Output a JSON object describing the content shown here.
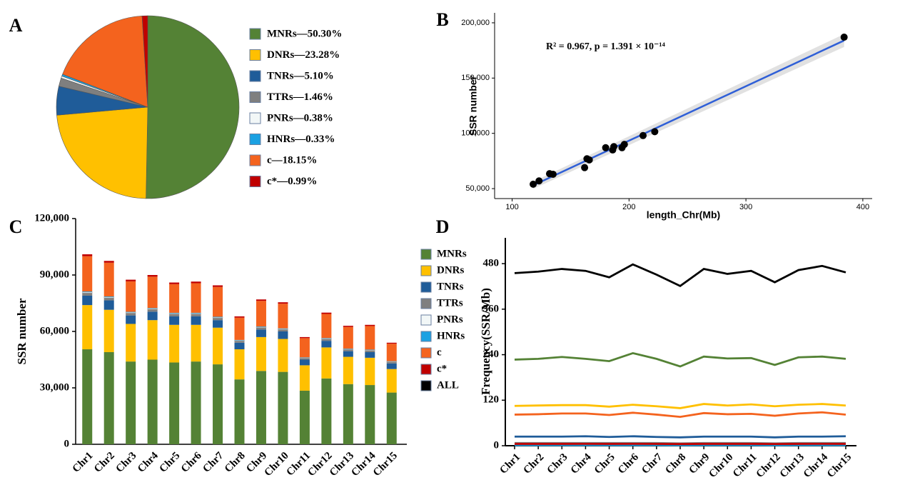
{
  "chart_data": [
    {
      "type": "pie",
      "panel_label": "A",
      "categories": [
        "MNRs—50.30%",
        "DNRs—23.28%",
        "TNRs—5.10%",
        "TTRs—1.46%",
        "PNRs—0.38%",
        "HNRs—0.33%",
        "c—18.15%",
        "c*—0.99%"
      ],
      "values": [
        50.3,
        23.28,
        5.1,
        1.46,
        0.38,
        0.33,
        18.15,
        0.99
      ],
      "colors": [
        "#548235",
        "#ffc000",
        "#1f5c99",
        "#7f7f7f",
        "#f2f7f7",
        "#1ba1e2",
        "#f4631e",
        "#c00000"
      ]
    },
    {
      "type": "scatter",
      "panel_label": "B",
      "x_label": "length_Chr(Mb)",
      "y_label": "SSR number",
      "annotation": "R² = 0.967, p = 1.391 × 10⁻¹⁴",
      "x": [
        118,
        123,
        132,
        135,
        162,
        164,
        166,
        180,
        186,
        187,
        194,
        196,
        212,
        222,
        384
      ],
      "values": [
        54000,
        57000,
        63500,
        63000,
        69000,
        77000,
        76000,
        87000,
        85000,
        88000,
        87000,
        90000,
        98000,
        101500,
        187000
      ],
      "color": "#000000",
      "fit": {
        "x": [
          118,
          384
        ],
        "y": [
          53000,
          184000
        ],
        "color": "#2f5fd7"
      },
      "xlim": [
        85,
        408
      ],
      "xticks": [
        100,
        200,
        300,
        400
      ],
      "ylim": [
        41000,
        209000
      ],
      "yticks": [
        {
          "value": 50000,
          "label": "50,000"
        },
        {
          "value": 100000,
          "label": "100,000"
        },
        {
          "value": 150000,
          "label": "150,000"
        },
        {
          "value": 200000,
          "label": "200,000"
        }
      ]
    },
    {
      "type": "bar",
      "stacked": true,
      "panel_label": "C",
      "y_label": "SSR number",
      "categories": [
        "Chr1",
        "Chr2",
        "Chr3",
        "Chr4",
        "Chr5",
        "Chr6",
        "Chr7",
        "Chr8",
        "Chr9",
        "Chr10",
        "Chr11",
        "Chr12",
        "Chr13",
        "Chr14",
        "Chr15"
      ],
      "series": [
        {
          "name": "MNRs",
          "color": "#548235",
          "values": [
            50500,
            49000,
            44000,
            45000,
            43500,
            44000,
            42500,
            34500,
            39000,
            38500,
            28500,
            35000,
            32000,
            31500,
            27500
          ]
        },
        {
          "name": "DNRs",
          "color": "#ffc000",
          "values": [
            23500,
            22500,
            20000,
            21000,
            20000,
            19500,
            19500,
            16000,
            18000,
            17500,
            13500,
            16500,
            14500,
            14500,
            12500
          ]
        },
        {
          "name": "TNRs",
          "color": "#1f5c99",
          "values": [
            5000,
            5000,
            4500,
            4500,
            4500,
            4500,
            4000,
            3500,
            4000,
            4000,
            3000,
            3500,
            3000,
            3000,
            3000
          ]
        },
        {
          "name": "TTRs",
          "color": "#7f7f7f",
          "values": [
            1500,
            1400,
            1300,
            1300,
            1300,
            1300,
            1200,
            1000,
            1100,
            1100,
            800,
            1000,
            900,
            900,
            800
          ]
        },
        {
          "name": "PNRs",
          "color": "#f2f7f7",
          "values": [
            400,
            370,
            330,
            340,
            330,
            330,
            320,
            260,
            290,
            290,
            220,
            270,
            240,
            240,
            210
          ]
        },
        {
          "name": "HNRs",
          "color": "#1ba1e2",
          "values": [
            330,
            320,
            290,
            300,
            280,
            290,
            280,
            220,
            250,
            250,
            190,
            230,
            210,
            210,
            180
          ]
        },
        {
          "name": "c",
          "color": "#f4631e",
          "values": [
            18770,
            17940,
            16210,
            16660,
            15230,
            15720,
            15860,
            11840,
            13600,
            13110,
            10230,
            12800,
            11530,
            12520,
            9270
          ]
        },
        {
          "name": "c*",
          "color": "#c00000",
          "values": [
            1000,
            970,
            870,
            900,
            860,
            860,
            840,
            680,
            760,
            750,
            560,
            700,
            620,
            630,
            540
          ]
        }
      ],
      "ylim": [
        0,
        120000
      ],
      "yticks": [
        0,
        {
          "value": 30000,
          "label": "30,000"
        },
        {
          "value": 60000,
          "label": "60,000"
        },
        {
          "value": 90000,
          "label": "90,000"
        },
        {
          "value": 120000,
          "label": "120,000"
        }
      ]
    },
    {
      "type": "line",
      "panel_label": "D",
      "y_label": "Frequency(SSR/Mb)",
      "categories": [
        "Chr1",
        "Chr2",
        "Chr3",
        "Chr4",
        "Chr5",
        "Chr6",
        "Chr7",
        "Chr8",
        "Chr9",
        "Chr10",
        "Chr11",
        "Chr12",
        "Chr13",
        "Chr14",
        "Chr15"
      ],
      "series": [
        {
          "name": "MNRs",
          "color": "#548235",
          "values": [
            227,
            229,
            234,
            229,
            223,
            244,
            229,
            209,
            235,
            230,
            231,
            213,
            233,
            235,
            229
          ]
        },
        {
          "name": "DNRs",
          "color": "#ffc000",
          "values": [
            105,
            106,
            107,
            107,
            103,
            108,
            104,
            99,
            110,
            106,
            109,
            104,
            108,
            110,
            106
          ]
        },
        {
          "name": "TNRs",
          "color": "#1f5c99",
          "values": [
            24,
            24,
            24,
            25,
            23,
            25,
            23,
            22,
            24,
            24,
            24,
            22,
            24,
            24,
            25
          ]
        },
        {
          "name": "TTRs",
          "color": "#7f7f7f",
          "values": [
            7,
            7,
            7,
            7,
            7,
            7,
            7,
            6,
            7,
            7,
            7,
            6,
            7,
            7,
            7
          ]
        },
        {
          "name": "PNRs",
          "color": "#f2f7f7",
          "values": [
            1.8,
            1.8,
            1.8,
            1.8,
            1.8,
            1.8,
            1.8,
            1.6,
            1.8,
            1.8,
            1.8,
            1.6,
            1.8,
            1.8,
            1.8
          ]
        },
        {
          "name": "HNRs",
          "color": "#1ba1e2",
          "values": [
            1.6,
            1.6,
            1.6,
            1.6,
            1.6,
            1.6,
            1.6,
            1.4,
            1.6,
            1.6,
            1.6,
            1.4,
            1.6,
            1.6,
            1.6
          ]
        },
        {
          "name": "c",
          "color": "#f4631e",
          "values": [
            82,
            83,
            85,
            85,
            81,
            87,
            82,
            76,
            86,
            83,
            84,
            79,
            85,
            88,
            82
          ]
        },
        {
          "name": "c*",
          "color": "#c00000",
          "values": [
            4.8,
            4.8,
            4.8,
            4.9,
            4.7,
            4.9,
            4.7,
            4.4,
            4.8,
            4.8,
            4.8,
            4.5,
            4.8,
            4.9,
            4.8
          ]
        },
        {
          "name": "ALL",
          "color": "#000000",
          "values": [
            455,
            459,
            466,
            461,
            444,
            478,
            451,
            421,
            466,
            453,
            461,
            431,
            463,
            474,
            457
          ]
        }
      ],
      "ylim": [
        0,
        548
      ],
      "yticks": [
        0,
        120,
        240,
        360,
        480
      ]
    }
  ]
}
